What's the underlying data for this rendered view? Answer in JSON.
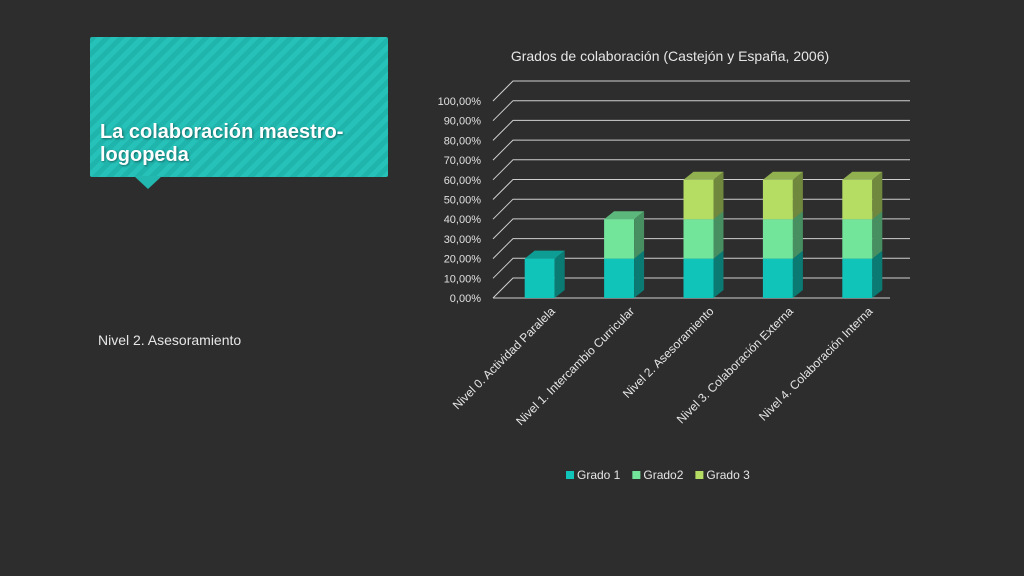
{
  "slide": {
    "title": "La colaboración maestro-logopeda",
    "body_text": "Nivel 2. Asesoramiento"
  },
  "colors": {
    "background": "#2d2d2d",
    "accent": "#1fb5ad",
    "series": [
      "#10c4b9",
      "#73e59b",
      "#b5dc63"
    ]
  },
  "chart_data": {
    "type": "bar",
    "stacked": true,
    "three_d": true,
    "title": "Grados de colaboración (Castejón y España, 2006)",
    "categories": [
      "Nivel 0. Actividad Paralela",
      "Nivel 1. Intercambio Curricular",
      "Nivel 2. Asesoramiento",
      "Nivel 3. Colaboración Externa",
      "Nivel 4. Colaboración Interna"
    ],
    "series": [
      {
        "name": "Grado 1",
        "values": [
          0.2,
          0.2,
          0.2,
          0.2,
          0.2
        ]
      },
      {
        "name": "Grado2",
        "values": [
          0,
          0.2,
          0.2,
          0.2,
          0.2
        ]
      },
      {
        "name": "Grado 3",
        "values": [
          0,
          0,
          0.2,
          0.2,
          0.2
        ]
      }
    ],
    "y_ticks": [
      "0,00%",
      "10,00%",
      "20,00%",
      "30,00%",
      "40,00%",
      "50,00%",
      "60,00%",
      "70,00%",
      "80,00%",
      "90,00%",
      "100,00%"
    ],
    "ylim": [
      0,
      1
    ],
    "grid": true,
    "legend_position": "bottom"
  }
}
